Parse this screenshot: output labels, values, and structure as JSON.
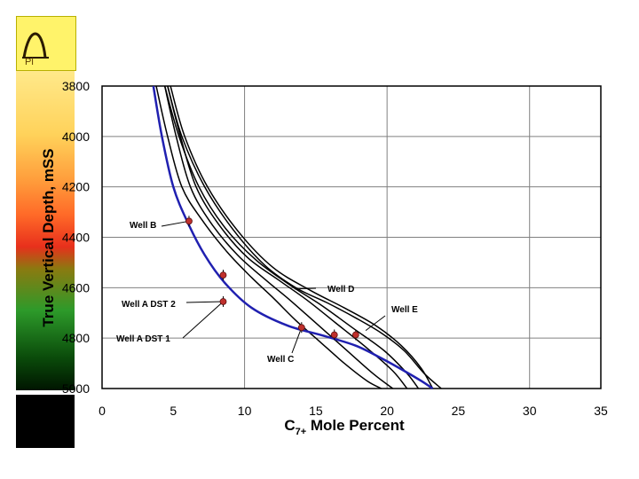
{
  "slide": {
    "logo_text": "Pl"
  },
  "chart_data": {
    "type": "line",
    "title": "",
    "xlabel_main": "C",
    "xlabel_sub": "7+",
    "xlabel_rest": " Mole Percent",
    "ylabel": "True Vertical Depth, mSS",
    "xlim": [
      0,
      35
    ],
    "ylim": [
      3800,
      5000
    ],
    "y_inverted": true,
    "x_ticks": [
      0,
      5,
      10,
      15,
      20,
      25,
      30,
      35
    ],
    "y_ticks": [
      3800,
      4000,
      4200,
      4400,
      4600,
      4800,
      5000
    ],
    "grid": true,
    "colors": {
      "model_line": "#2020b0",
      "curves": "#000000",
      "points": "#c0302c",
      "grid": "#808080"
    },
    "series": [
      {
        "name": "blue-model",
        "color": "#2020b0",
        "x": [
          3.6,
          4.2,
          5.0,
          6.0,
          7.2,
          8.6,
          10.5,
          13.0,
          15.5,
          17.8,
          19.6,
          21.2,
          22.4,
          23.2
        ],
        "y": [
          3800,
          4000,
          4200,
          4340,
          4470,
          4580,
          4680,
          4750,
          4790,
          4830,
          4880,
          4930,
          4970,
          5000
        ]
      },
      {
        "name": "curve-1",
        "color": "#000000",
        "x": [
          3.8,
          4.6,
          5.6,
          7.0,
          8.8,
          10.5,
          12.0,
          13.6,
          15.2,
          17.0,
          18.6,
          19.6
        ],
        "y": [
          3800,
          4000,
          4200,
          4330,
          4460,
          4560,
          4640,
          4730,
          4810,
          4900,
          4970,
          5000
        ]
      },
      {
        "name": "curve-2",
        "color": "#000000",
        "x": [
          4.4,
          5.2,
          6.2,
          7.6,
          9.5,
          11.5,
          13.2,
          15.0,
          17.0,
          19.0,
          20.4
        ],
        "y": [
          3800,
          4000,
          4200,
          4340,
          4470,
          4570,
          4650,
          4740,
          4840,
          4940,
          5000
        ]
      },
      {
        "name": "curve-3",
        "color": "#000000",
        "x": [
          4.6,
          5.5,
          6.6,
          8.2,
          10.2,
          12.4,
          14.4,
          16.4,
          18.6,
          20.4,
          21.4
        ],
        "y": [
          3800,
          4000,
          4200,
          4350,
          4480,
          4570,
          4650,
          4740,
          4840,
          4930,
          5000
        ]
      },
      {
        "name": "curve-4",
        "color": "#000000",
        "x": [
          4.4,
          5.4,
          6.8,
          8.6,
          10.8,
          13.2,
          15.4,
          17.6,
          19.8,
          21.4,
          22.2
        ],
        "y": [
          3800,
          4000,
          4200,
          4360,
          4490,
          4590,
          4670,
          4760,
          4850,
          4940,
          5000
        ]
      },
      {
        "name": "curve-5",
        "color": "#000000",
        "x": [
          4.6,
          5.6,
          7.2,
          9.2,
          11.4,
          13.6,
          15.8,
          17.8,
          19.6,
          21.2,
          22.6,
          23.8
        ],
        "y": [
          3800,
          4000,
          4200,
          4370,
          4510,
          4600,
          4660,
          4720,
          4780,
          4850,
          4940,
          5000
        ]
      },
      {
        "name": "curve-6",
        "color": "#000000",
        "x": [
          4.8,
          5.8,
          7.4,
          9.6,
          12.0,
          14.6,
          17.0,
          19.2,
          21.0,
          22.4,
          23.2
        ],
        "y": [
          3800,
          4000,
          4200,
          4380,
          4520,
          4610,
          4680,
          4750,
          4830,
          4920,
          5000
        ]
      }
    ],
    "points": [
      {
        "x": 6.1,
        "y": 4336
      },
      {
        "x": 8.5,
        "y": 4550
      },
      {
        "x": 8.5,
        "y": 4655
      },
      {
        "x": 14.0,
        "y": 4758
      },
      {
        "x": 16.3,
        "y": 4787
      },
      {
        "x": 17.8,
        "y": 4787
      }
    ],
    "annotations": [
      {
        "text": "Well B",
        "anchor_x": 6.1,
        "anchor_y": 4336
      },
      {
        "text": "Well A DST 2",
        "anchor_x": 8.5,
        "anchor_y": 4655
      },
      {
        "text": "Well A DST 1",
        "anchor_x": 8.5,
        "anchor_y": 4655
      },
      {
        "text": "Well D",
        "anchor_x": 13.5,
        "anchor_y": 4605
      },
      {
        "text": "Well E",
        "anchor_x": 18.5,
        "anchor_y": 4770
      },
      {
        "text": "Well C",
        "anchor_x": 14.0,
        "anchor_y": 4758
      }
    ]
  }
}
